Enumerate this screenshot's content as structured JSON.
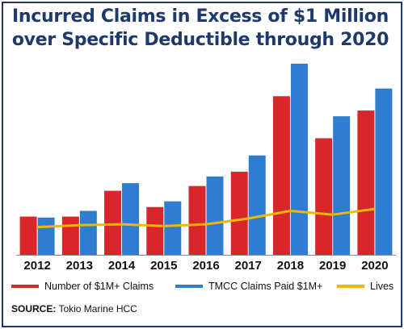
{
  "title_line1": "Incurred Claims in Excess of $1 Million",
  "title_line2": "over Specific Deductible through 2020",
  "source_label": "SOURCE:",
  "source_text": " Tokio Marine HCC",
  "colors": {
    "frame": "#1d3a6b",
    "title": "#1d3a6b",
    "claims": "#d8262b",
    "paid": "#2f7dd1",
    "lives": "#f2b705"
  },
  "chart_data": {
    "type": "bar",
    "title": "Incurred Claims in Excess of $1 Million over Specific Deductible through 2020",
    "categories": [
      "2012",
      "2013",
      "2014",
      "2015",
      "2016",
      "2017",
      "2018",
      "2019",
      "2020"
    ],
    "series": [
      {
        "name": "Number of $1M+ Claims",
        "type": "bar",
        "values": [
          20,
          20,
          33.5,
          25,
          36,
          43.5,
          83,
          61,
          75.5
        ]
      },
      {
        "name": "TMCC Claims Paid $1M+",
        "type": "bar",
        "values": [
          19.5,
          23,
          37.5,
          28,
          41,
          52,
          100,
          72.5,
          87
        ]
      },
      {
        "name": "Lives",
        "type": "line",
        "values": [
          14.5,
          15.5,
          16,
          15,
          16,
          19,
          23,
          21,
          24
        ]
      }
    ],
    "ylim": [
      0,
      100
    ],
    "grid": false,
    "legend": "bottom"
  }
}
